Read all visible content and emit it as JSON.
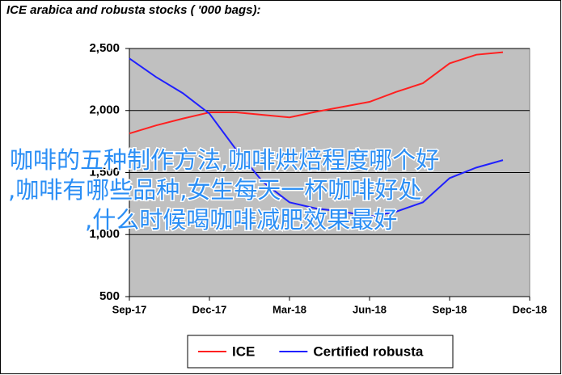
{
  "chart_data": {
    "type": "line",
    "title": "ICE arabica and robusta stocks ( '000 bags):",
    "xlim": [
      "2017-09",
      "2018-12"
    ],
    "xticks": [
      {
        "value": "2017-09",
        "label": "Sep-17"
      },
      {
        "value": "2017-12",
        "label": "Dec-17"
      },
      {
        "value": "2018-03",
        "label": "Mar-18"
      },
      {
        "value": "2018-06",
        "label": "Jun-18"
      },
      {
        "value": "2018-09",
        "label": "Sep-18"
      },
      {
        "value": "2018-12",
        "label": "Dec-18"
      }
    ],
    "ylim": [
      500,
      2500
    ],
    "yticks": [
      {
        "value": 500,
        "label": "500"
      },
      {
        "value": 1000,
        "label": "1,000"
      },
      {
        "value": 1500,
        "label": "1,500"
      },
      {
        "value": 2000,
        "label": "2,000"
      },
      {
        "value": 2500,
        "label": "2,500"
      }
    ],
    "grid": true,
    "x": [
      "2017-09",
      "2017-10",
      "2017-11",
      "2017-12",
      "2018-01",
      "2018-02",
      "2018-03",
      "2018-04",
      "2018-05",
      "2018-06",
      "2018-07",
      "2018-08",
      "2018-09",
      "2018-10",
      "2018-11"
    ],
    "series": [
      {
        "name": "ICE",
        "color": "#ff2020",
        "values": [
          1815,
          1880,
          1935,
          1985,
          1985,
          1965,
          1945,
          1990,
          2030,
          2070,
          2150,
          2220,
          2380,
          2450,
          2470
        ]
      },
      {
        "name": "Certified robusta",
        "color": "#2020ff",
        "values": [
          2420,
          2270,
          2140,
          1975,
          1685,
          1425,
          1260,
          1210,
          1185,
          1145,
          1185,
          1260,
          1455,
          1540,
          1600
        ]
      }
    ],
    "annotations": [
      "咖啡的五种制作方法,咖啡烘焙程度哪个好",
      ",咖啡有哪些品种,女生每天一杯咖啡好处",
      ",什么时候喝咖啡减肥效果最好"
    ]
  }
}
